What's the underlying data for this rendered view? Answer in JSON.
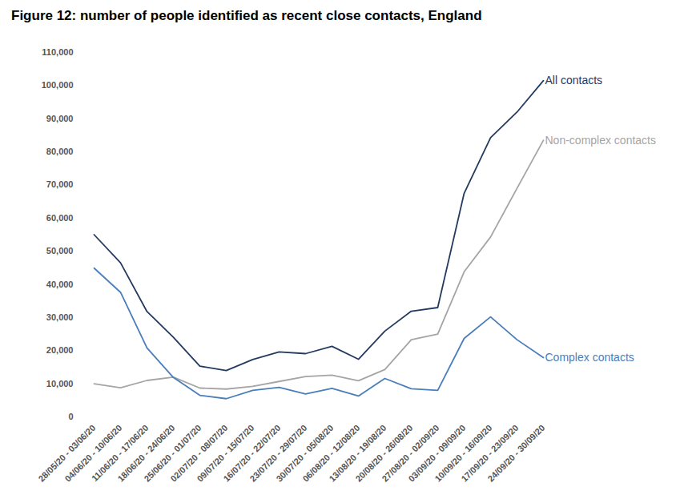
{
  "chart_data": {
    "type": "line",
    "title": "Figure 12: number of people identified as recent close contacts, England",
    "categories": [
      "28/05/20 - 03/06/20",
      "04/06/20 - 10/06/20",
      "11/06/20 - 17/06/20",
      "18/06/20 - 24/06/20",
      "25/06/20 - 01/07/20",
      "02/07/20 - 08/07/20",
      "09/07/20 - 15/07/20",
      "16/07/20 - 22/07/20",
      "23/07/20 - 29/07/20",
      "30/07/20 - 05/08/20",
      "06/08/20 - 12/08/20",
      "13/08/20 - 19/08/20",
      "20/08/20 - 26/08/20",
      "27/08/20 - 02/09/20",
      "03/09/20 - 09/09/20",
      "10/09/20 - 16/09/20",
      "17/09/20 - 23/09/20",
      "24/09/20 - 30/09/20"
    ],
    "series": [
      {
        "name": "All contacts",
        "color": "#243a5e",
        "values": [
          55000,
          46500,
          31800,
          24000,
          15300,
          14000,
          17300,
          19600,
          19100,
          21300,
          17400,
          25900,
          31900,
          33000,
          67500,
          84300,
          92000,
          101500
        ]
      },
      {
        "name": "Non-complex contacts",
        "color": "#a5a5a5",
        "values": [
          10000,
          8800,
          11000,
          12000,
          8700,
          8400,
          9200,
          10700,
          12200,
          12600,
          10900,
          14300,
          23300,
          25000,
          43800,
          54300,
          69000,
          83500
        ]
      },
      {
        "name": "Complex contacts",
        "color": "#4a7ebb",
        "values": [
          44900,
          37600,
          20800,
          11900,
          6500,
          5500,
          8000,
          8900,
          6900,
          8600,
          6300,
          11600,
          8500,
          8000,
          23700,
          30200,
          23300,
          17900
        ]
      }
    ],
    "ylim": [
      0,
      110000
    ],
    "yticks": [
      0,
      {
        "value": 10000,
        "label": "10,000"
      },
      {
        "value": 20000,
        "label": "20,000"
      },
      {
        "value": 30000,
        "label": "30,000"
      },
      {
        "value": 40000,
        "label": "40,000"
      },
      {
        "value": 50000,
        "label": "50,000"
      },
      {
        "value": 60000,
        "label": "60,000"
      },
      {
        "value": 70000,
        "label": "70,000"
      },
      {
        "value": 80000,
        "label": "80,000"
      },
      {
        "value": 90000,
        "label": "90,000"
      },
      {
        "value": 100000,
        "label": "100,000"
      },
      {
        "value": 110000,
        "label": "110,000"
      }
    ],
    "grid": false
  }
}
